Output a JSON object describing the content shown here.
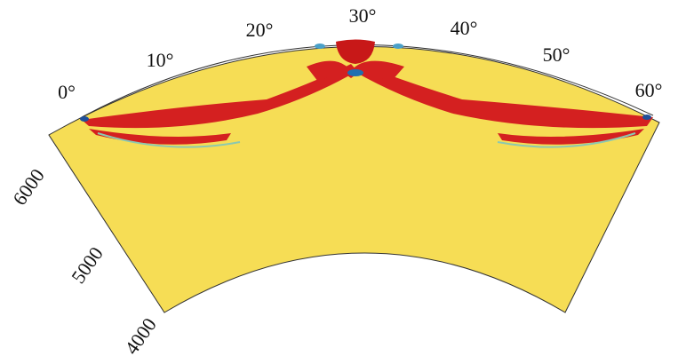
{
  "angle_ticks": [
    "0°",
    "10°",
    "20°",
    "30°",
    "40°",
    "50°",
    "60°"
  ],
  "depth_ticks": [
    "6000",
    "5000",
    "4000"
  ]
}
